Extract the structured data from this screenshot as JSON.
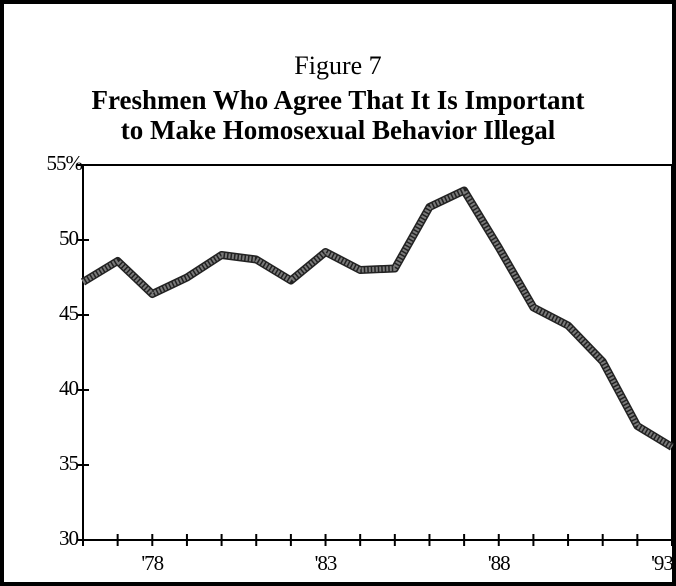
{
  "chart_data": {
    "type": "line",
    "title": "Figure 7",
    "subtitle": [
      "Freshmen Who Agree That It Is Important",
      "to Make Homosexual Behavior Illegal"
    ],
    "x": [
      1976,
      1977,
      1978,
      1979,
      1980,
      1981,
      1982,
      1983,
      1984,
      1985,
      1986,
      1987,
      1988,
      1989,
      1990,
      1991,
      1992,
      1993
    ],
    "series": [
      {
        "color": "#7a7a7a",
        "values": [
          47.2,
          48.6,
          46.4,
          47.5,
          49.0,
          48.7,
          47.3,
          49.2,
          48.0,
          48.1,
          52.2,
          53.3,
          49.5,
          45.5,
          44.3,
          41.9,
          37.6,
          36.2
        ]
      }
    ],
    "xlim": [
      1976,
      1993
    ],
    "xticks": [
      {
        "value": 1978,
        "label": "'78"
      },
      {
        "value": 1983,
        "label": "'83"
      },
      {
        "value": 1988,
        "label": "'88"
      },
      {
        "value": 1993,
        "label": "'93"
      }
    ],
    "xticks_minor": [
      1976,
      1977,
      1978,
      1979,
      1980,
      1981,
      1982,
      1983,
      1984,
      1985,
      1986,
      1987,
      1988,
      1989,
      1990,
      1991,
      1992,
      1993
    ],
    "ylim": [
      30,
      55
    ],
    "yticks": [
      30,
      35,
      40,
      45,
      50,
      {
        "value": 55,
        "label": "55%"
      }
    ],
    "grid": false
  }
}
